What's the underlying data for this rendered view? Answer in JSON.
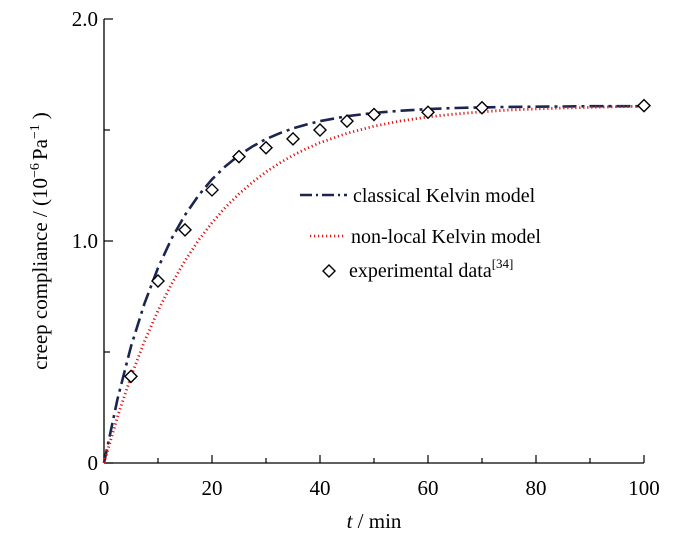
{
  "chart_data": {
    "type": "line",
    "xlabel": {
      "symbol": "t",
      "rest": " / min"
    },
    "ylabel": {
      "prefix": "creep compliance / (10",
      "exp1": "−6",
      "mid": "Pa",
      "exp2": "−1",
      "suffix": ")"
    },
    "xlim": [
      0,
      100
    ],
    "ylim": [
      0,
      2.0
    ],
    "x_ticks": [
      0,
      20,
      40,
      60,
      80,
      100
    ],
    "x_tick_labels": [
      "0",
      "20",
      "40",
      "60",
      "80",
      "100"
    ],
    "y_labeled_ticks": [
      0,
      1.0,
      2.0
    ],
    "y_tick_labels": [
      "0",
      "1.0",
      "2.0"
    ],
    "grid": false,
    "legend_position": "center-right",
    "series": [
      {
        "key": "classical",
        "name": "classical Kelvin model",
        "style": "dash-dot",
        "color": "#1a2550",
        "x": [
          0,
          2.5,
          5,
          7.5,
          10,
          12.5,
          15,
          17.5,
          20,
          22.5,
          25,
          27.5,
          30,
          32.5,
          35,
          37.5,
          40,
          45,
          50,
          55,
          60,
          65,
          70,
          75,
          80,
          85,
          90,
          95,
          100
        ],
        "y": [
          0,
          0.288,
          0.525,
          0.719,
          0.879,
          1.01,
          1.117,
          1.205,
          1.278,
          1.337,
          1.386,
          1.426,
          1.459,
          1.485,
          1.507,
          1.525,
          1.54,
          1.562,
          1.577,
          1.587,
          1.594,
          1.599,
          1.602,
          1.604,
          1.605,
          1.606,
          1.607,
          1.607,
          1.607
        ]
      },
      {
        "key": "nonlocal",
        "name": "non-local  Kelvin model",
        "style": "dotted",
        "color": "#e01414",
        "x": [
          0,
          2.5,
          5,
          7.5,
          10,
          12.5,
          15,
          17.5,
          20,
          22.5,
          25,
          27.5,
          30,
          32.5,
          35,
          37.5,
          40,
          45,
          50,
          55,
          60,
          65,
          70,
          75,
          80,
          85,
          90,
          95,
          100
        ],
        "y": [
          0,
          0.208,
          0.39,
          0.548,
          0.686,
          0.806,
          0.911,
          1.003,
          1.082,
          1.152,
          1.212,
          1.265,
          1.311,
          1.351,
          1.386,
          1.416,
          1.443,
          1.485,
          1.517,
          1.541,
          1.559,
          1.572,
          1.582,
          1.59,
          1.595,
          1.599,
          1.602,
          1.605,
          1.607
        ]
      },
      {
        "key": "experimental",
        "name": "experimental data",
        "name_sup": "[34]",
        "style": "markers",
        "marker": "diamond",
        "color": "#000000",
        "x": [
          5,
          10,
          15,
          20,
          25,
          30,
          35,
          40,
          45,
          50,
          60,
          70,
          100
        ],
        "y": [
          0.39,
          0.82,
          1.05,
          1.23,
          1.38,
          1.42,
          1.46,
          1.5,
          1.54,
          1.57,
          1.58,
          1.6,
          1.61
        ]
      }
    ]
  }
}
